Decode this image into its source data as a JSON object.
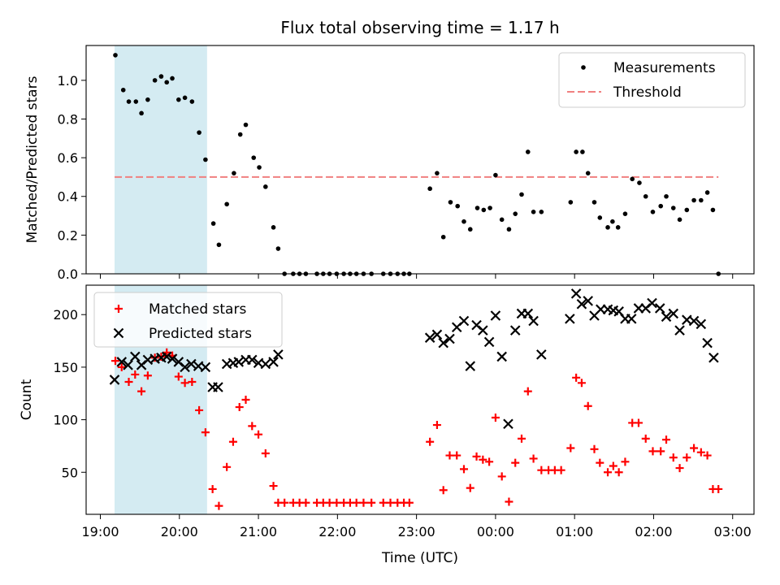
{
  "title": "Flux total observing time = 1.17 h",
  "xlabel": "Time (UTC)",
  "x_tick_labels": [
    "19:00",
    "20:00",
    "21:00",
    "22:00",
    "23:00",
    "00:00",
    "01:00",
    "02:00",
    "03:00"
  ],
  "x_tick_hours": [
    19,
    20,
    21,
    22,
    23,
    24,
    25,
    26,
    27
  ],
  "colors": {
    "measurements": "#000000",
    "threshold": "#f08080",
    "matched": "#ff0000",
    "predicted": "#000000",
    "shaded": "#add8e6"
  },
  "chart_data": [
    {
      "type": "scatter",
      "ylabel": "Matched/Predicted stars",
      "ylim": [
        0,
        1.18
      ],
      "xlim": [
        18.82,
        27.27
      ],
      "y_ticks": [
        0.0,
        0.2,
        0.4,
        0.6,
        0.8,
        1.0
      ],
      "y_tick_labels": [
        "0.0",
        "0.2",
        "0.4",
        "0.6",
        "0.8",
        "1.0"
      ],
      "legend": {
        "position": "top-right",
        "entries": [
          "Measurements",
          "Threshold"
        ]
      },
      "shaded_region": [
        19.18,
        20.35
      ],
      "threshold": {
        "name": "Threshold",
        "value": 0.5,
        "x_range": [
          19.18,
          26.82
        ]
      },
      "series": [
        {
          "name": "Measurements",
          "marker": "dot",
          "x": [
            19.19,
            19.29,
            19.36,
            19.45,
            19.52,
            19.6,
            19.69,
            19.77,
            19.84,
            19.91,
            19.99,
            20.07,
            20.16,
            20.25,
            20.33,
            20.43,
            20.5,
            20.6,
            20.69,
            20.77,
            20.84,
            20.94,
            21.01,
            21.09,
            21.19,
            21.25,
            21.33,
            21.44,
            21.52,
            21.6,
            21.74,
            21.82,
            21.9,
            21.99,
            22.08,
            22.16,
            22.24,
            22.33,
            22.43,
            22.58,
            22.67,
            22.76,
            22.84,
            22.91,
            23.17,
            23.26,
            23.34,
            23.43,
            23.52,
            23.6,
            23.68,
            23.77,
            23.85,
            23.93,
            24.0,
            24.08,
            24.17,
            24.25,
            24.33,
            24.41,
            24.48,
            24.58,
            24.95,
            25.02,
            25.1,
            25.17,
            25.25,
            25.32,
            25.42,
            25.48,
            25.55,
            25.64,
            25.73,
            25.82,
            25.9,
            25.99,
            26.09,
            26.16,
            26.25,
            26.33,
            26.42,
            26.51,
            26.6,
            26.68,
            26.75,
            26.82
          ],
          "y": [
            1.13,
            0.95,
            0.89,
            0.89,
            0.83,
            0.9,
            1.0,
            1.02,
            0.99,
            1.01,
            0.9,
            0.91,
            0.89,
            0.73,
            0.59,
            0.26,
            0.15,
            0.36,
            0.52,
            0.72,
            0.77,
            0.6,
            0.55,
            0.45,
            0.24,
            0.13,
            0.0,
            0.0,
            0.0,
            0.0,
            0.0,
            0.0,
            0.0,
            0.0,
            0.0,
            0.0,
            0.0,
            0.0,
            0.0,
            0.0,
            0.0,
            0.0,
            0.0,
            0.0,
            0.44,
            0.52,
            0.19,
            0.37,
            0.35,
            0.27,
            0.23,
            0.34,
            0.33,
            0.34,
            0.51,
            0.28,
            0.23,
            0.31,
            0.41,
            0.63,
            0.32,
            0.32,
            0.37,
            0.63,
            0.63,
            0.52,
            0.37,
            0.29,
            0.24,
            0.27,
            0.24,
            0.31,
            0.49,
            0.47,
            0.4,
            0.32,
            0.35,
            0.4,
            0.34,
            0.28,
            0.33,
            0.38,
            0.38,
            0.42,
            0.33,
            0.0
          ]
        }
      ]
    },
    {
      "type": "scatter",
      "ylabel": "Count",
      "ylim": [
        10,
        228
      ],
      "xlim": [
        18.82,
        27.27
      ],
      "y_ticks": [
        50,
        100,
        150,
        200
      ],
      "y_tick_labels": [
        "50",
        "100",
        "150",
        "200"
      ],
      "legend": {
        "position": "top-left",
        "entries": [
          "Matched stars",
          "Predicted stars"
        ]
      },
      "shaded_region": [
        19.18,
        20.35
      ],
      "series": [
        {
          "name": "Matched stars",
          "marker": "plus",
          "x": [
            19.19,
            19.27,
            19.36,
            19.44,
            19.52,
            19.6,
            19.69,
            19.77,
            19.84,
            19.91,
            19.99,
            20.07,
            20.16,
            20.25,
            20.33,
            20.42,
            20.5,
            20.6,
            20.68,
            20.76,
            20.84,
            20.92,
            21.0,
            21.09,
            21.19,
            21.25,
            21.33,
            21.44,
            21.52,
            21.6,
            21.74,
            21.82,
            21.9,
            21.99,
            22.08,
            22.16,
            22.24,
            22.33,
            22.43,
            22.58,
            22.67,
            22.76,
            22.84,
            22.91,
            23.17,
            23.26,
            23.34,
            23.42,
            23.51,
            23.6,
            23.68,
            23.76,
            23.84,
            23.92,
            24.0,
            24.08,
            24.17,
            24.25,
            24.33,
            24.41,
            24.48,
            24.58,
            24.67,
            24.75,
            24.83,
            24.95,
            25.02,
            25.09,
            25.17,
            25.25,
            25.32,
            25.42,
            25.49,
            25.56,
            25.64,
            25.73,
            25.81,
            25.9,
            25.99,
            26.09,
            26.16,
            26.25,
            26.33,
            26.42,
            26.51,
            26.6,
            26.68,
            26.75,
            26.82
          ],
          "y": [
            156,
            150,
            136,
            143,
            127,
            142,
            159,
            160,
            164,
            161,
            141,
            135,
            136,
            109,
            88,
            34,
            18,
            55,
            79,
            112,
            119,
            94,
            86,
            68,
            37,
            21,
            21,
            21,
            21,
            21,
            21,
            21,
            21,
            21,
            21,
            21,
            21,
            21,
            21,
            21,
            21,
            21,
            21,
            21,
            79,
            95,
            33,
            66,
            66,
            53,
            35,
            65,
            62,
            60,
            102,
            46,
            22,
            59,
            82,
            127,
            63,
            52,
            52,
            52,
            52,
            73,
            140,
            135,
            113,
            72,
            59,
            50,
            56,
            50,
            60,
            97,
            97,
            82,
            70,
            70,
            81,
            64,
            54,
            64,
            73,
            69,
            66,
            34,
            34
          ]
        },
        {
          "name": "Predicted stars",
          "marker": "x",
          "x": [
            19.18,
            19.27,
            19.35,
            19.44,
            19.52,
            19.6,
            19.69,
            19.77,
            19.84,
            19.91,
            19.99,
            20.07,
            20.15,
            20.24,
            20.33,
            20.42,
            20.49,
            20.6,
            20.68,
            20.75,
            20.84,
            20.92,
            21.0,
            21.09,
            21.19,
            21.25,
            23.17,
            23.26,
            23.34,
            23.42,
            23.51,
            23.6,
            23.68,
            23.76,
            23.84,
            23.92,
            24.0,
            24.08,
            24.16,
            24.25,
            24.33,
            24.41,
            24.48,
            24.58,
            24.94,
            25.02,
            25.09,
            25.17,
            25.25,
            25.33,
            25.42,
            25.49,
            25.56,
            25.64,
            25.72,
            25.81,
            25.9,
            25.98,
            26.08,
            26.16,
            26.25,
            26.33,
            26.42,
            26.51,
            26.6,
            26.68,
            26.76
          ],
          "y": [
            138,
            155,
            152,
            160,
            152,
            157,
            158,
            159,
            160,
            158,
            155,
            150,
            153,
            151,
            150,
            131,
            131,
            153,
            154,
            155,
            157,
            157,
            154,
            153,
            155,
            162,
            178,
            181,
            173,
            177,
            188,
            194,
            151,
            190,
            185,
            174,
            199,
            160,
            96,
            185,
            201,
            201,
            194,
            162,
            196,
            220,
            210,
            213,
            199,
            205,
            205,
            204,
            203,
            196,
            196,
            206,
            206,
            211,
            206,
            198,
            201,
            185,
            195,
            194,
            191,
            173,
            159
          ]
        }
      ]
    }
  ]
}
